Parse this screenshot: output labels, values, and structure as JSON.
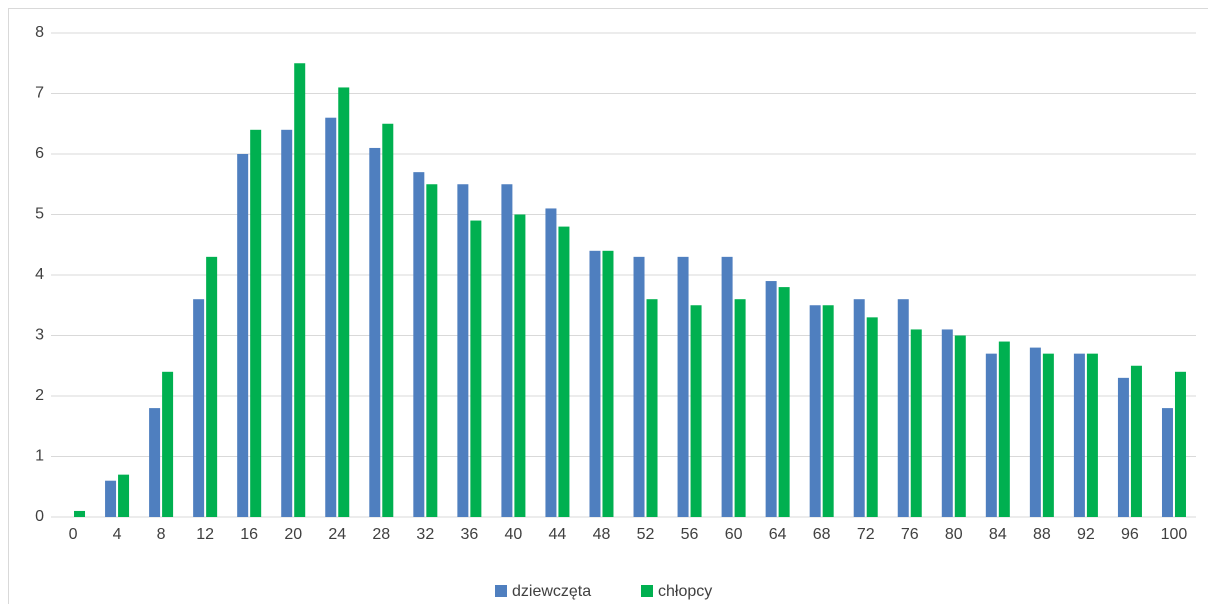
{
  "chart_data": {
    "type": "bar",
    "categories": [
      "0",
      "4",
      "8",
      "12",
      "16",
      "20",
      "24",
      "28",
      "32",
      "36",
      "40",
      "44",
      "48",
      "52",
      "56",
      "60",
      "64",
      "68",
      "72",
      "76",
      "80",
      "84",
      "88",
      "92",
      "96",
      "100"
    ],
    "series": [
      {
        "name": "dziewczęta",
        "color": "#4f7fbf",
        "values": [
          0,
          0.6,
          1.8,
          3.6,
          6.0,
          6.4,
          6.6,
          6.1,
          5.7,
          5.5,
          5.5,
          5.1,
          4.4,
          4.3,
          4.3,
          4.3,
          3.9,
          3.5,
          3.6,
          3.6,
          3.1,
          2.7,
          2.8,
          2.7,
          2.3,
          1.8
        ]
      },
      {
        "name": "chłopcy",
        "color": "#00b050",
        "values": [
          0.1,
          0.7,
          2.4,
          4.3,
          6.4,
          7.5,
          7.1,
          6.5,
          5.5,
          4.9,
          5.0,
          4.8,
          4.4,
          3.6,
          3.5,
          3.6,
          3.8,
          3.5,
          3.3,
          3.1,
          3.0,
          2.9,
          2.7,
          2.7,
          2.5,
          2.4
        ]
      }
    ],
    "ylim": [
      0,
      8
    ],
    "yticks": [
      0,
      1,
      2,
      3,
      4,
      5,
      6,
      7,
      8
    ],
    "grid": true,
    "legend": "bottom"
  }
}
